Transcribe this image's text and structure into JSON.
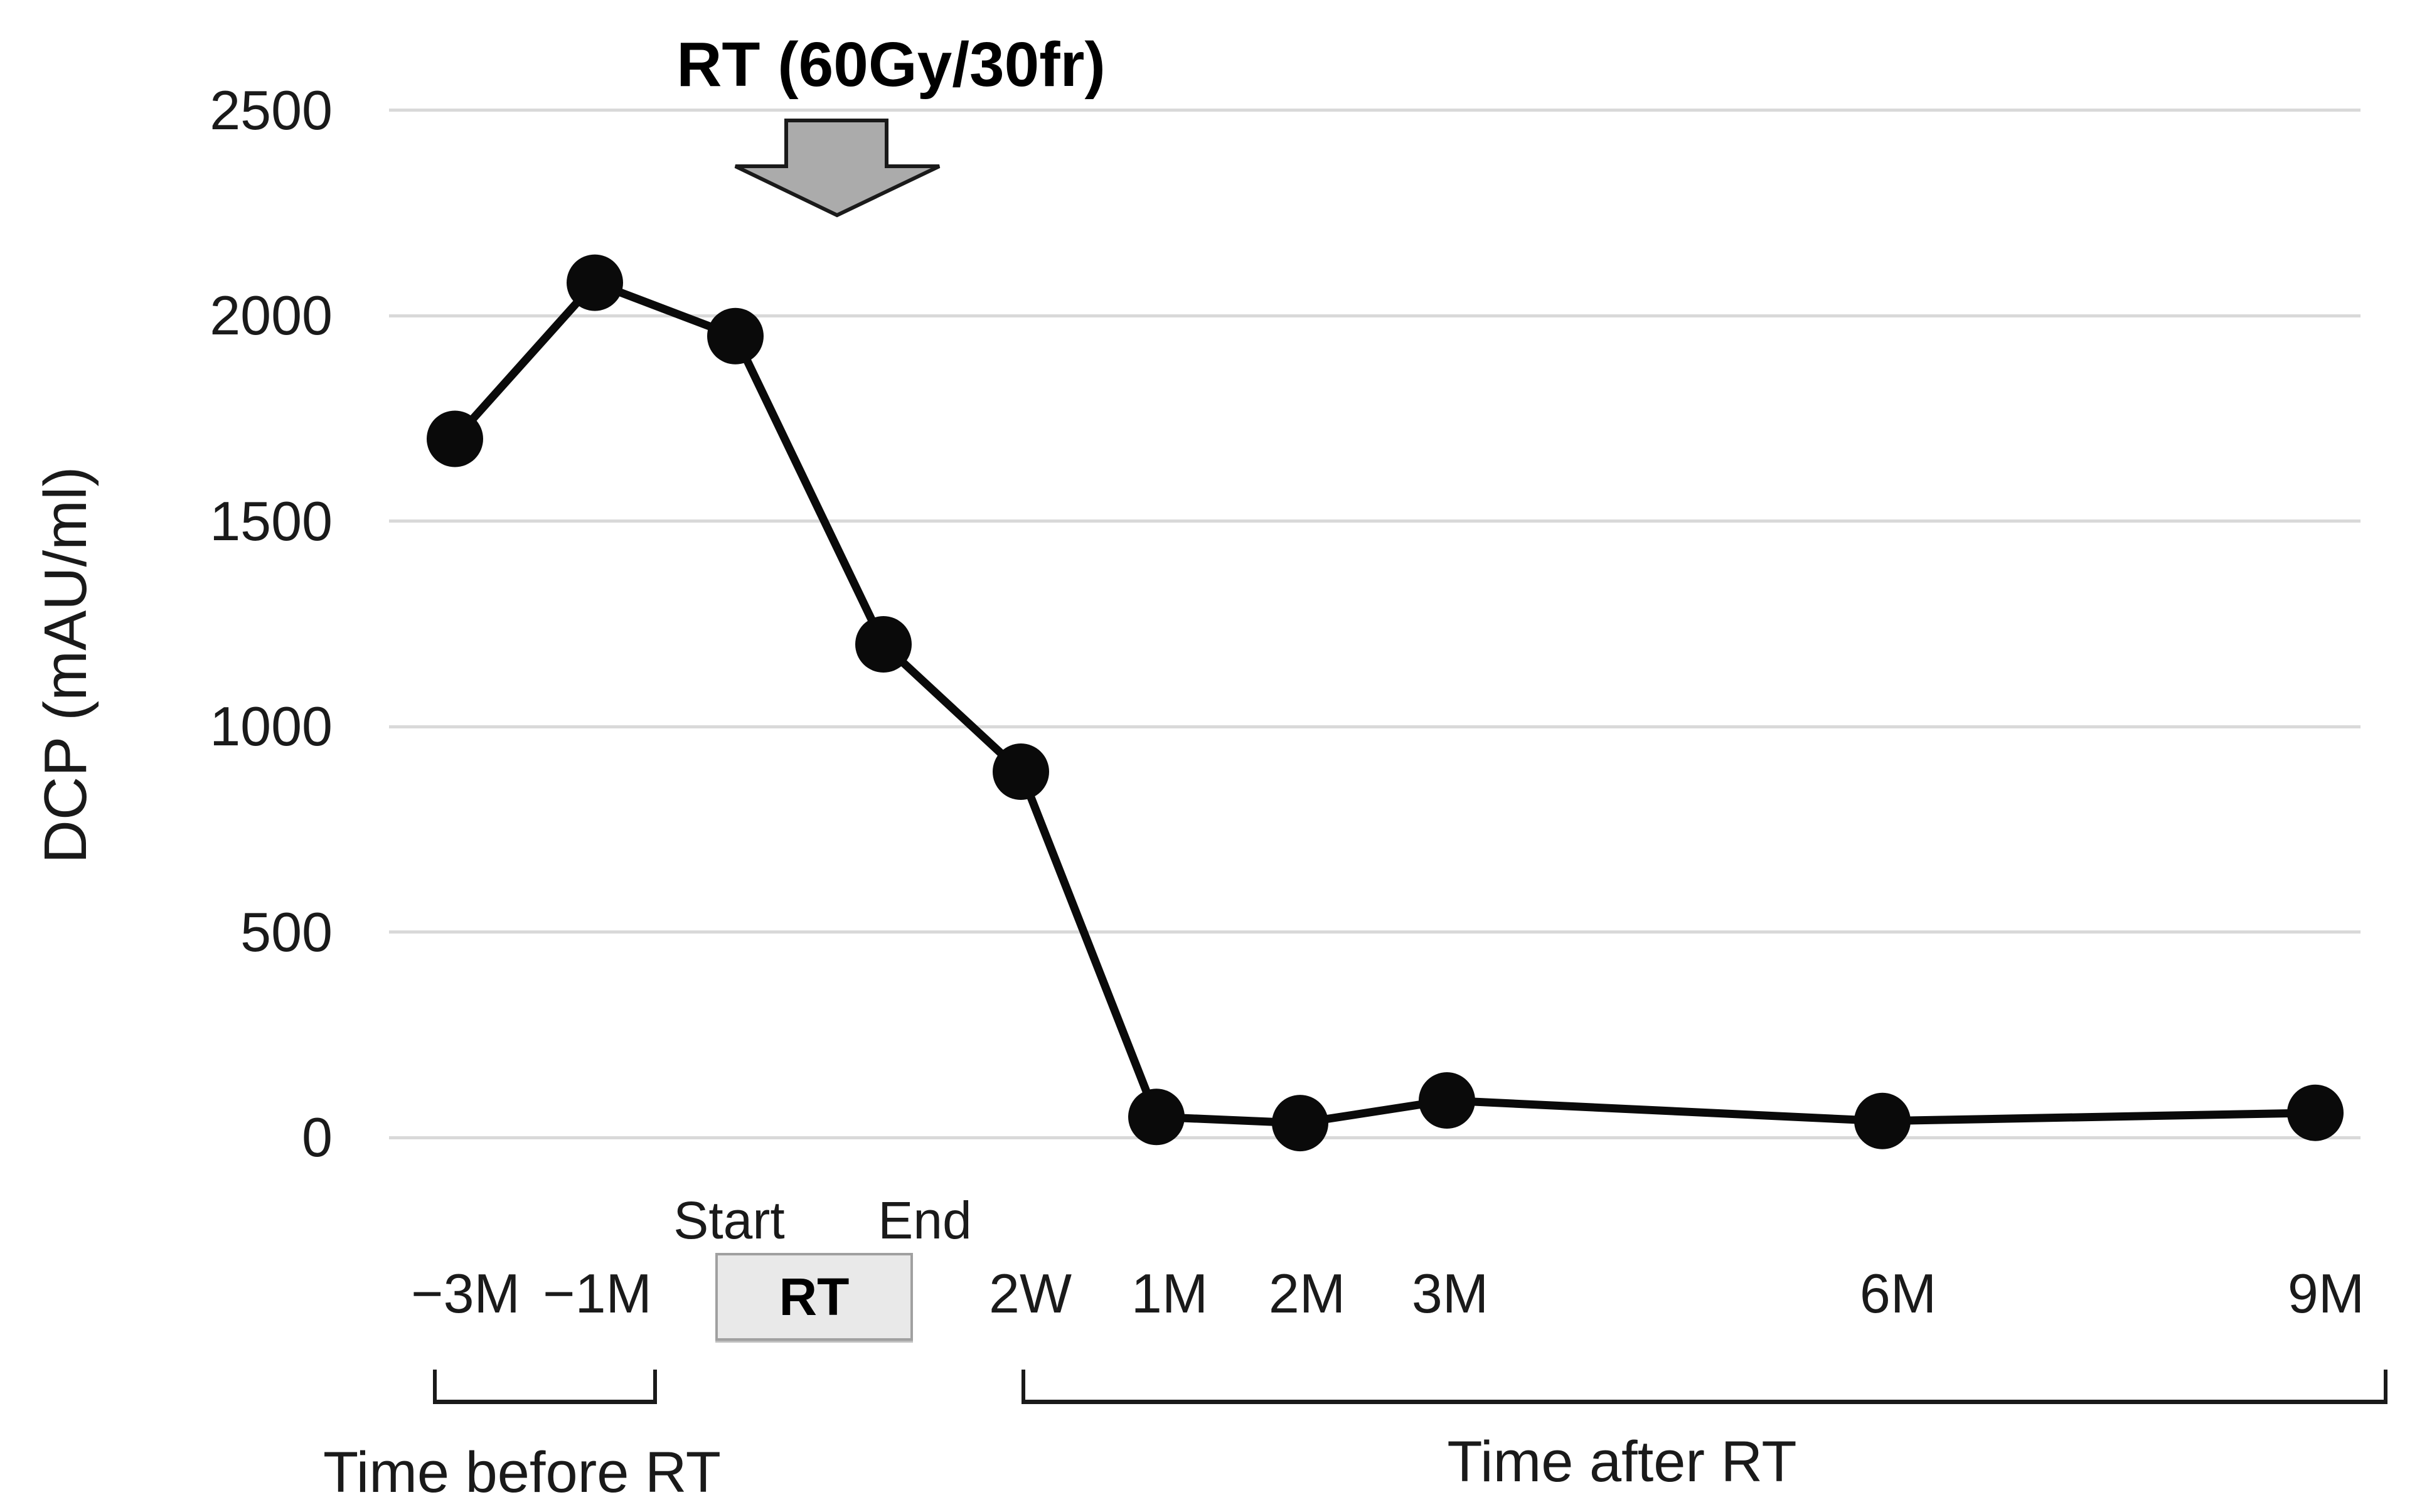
{
  "chart_data": {
    "type": "line",
    "title": "RT (60Gy/30fr)",
    "ylabel": "DCP (mAU/ml)",
    "categories": [
      "−3M",
      "−1M",
      "RT start",
      "RT end",
      "2W",
      "1M",
      "2M",
      "3M",
      "6M",
      "9M"
    ],
    "values": [
      1700,
      2080,
      1950,
      1200,
      890,
      50,
      35,
      90,
      40,
      60
    ],
    "x_tick_labels": [
      "−3M",
      "−1M",
      "2W",
      "1M",
      "2M",
      "3M",
      "6M",
      "9M"
    ],
    "yticks": [
      2500,
      2000,
      1500,
      1000,
      500,
      0
    ],
    "ylim": [
      0,
      2500
    ],
    "grid": true,
    "legend": false,
    "marker": "filled-circle",
    "annotations": {
      "arrow_label": "RT (60Gy/30fr)",
      "rt_box": "RT",
      "rt_start": "Start",
      "rt_end": "End",
      "bracket_before": "Time before RT",
      "bracket_after": "Time after RT"
    },
    "colors": {
      "line": "#0a0a0a",
      "gridline": "#d9d9d9",
      "arrow_fill": "#ababab",
      "arrow_border": "#1a1a1a",
      "rt_box_fill": "#e9e9e9",
      "rt_box_border": "#a0a0a0"
    }
  }
}
